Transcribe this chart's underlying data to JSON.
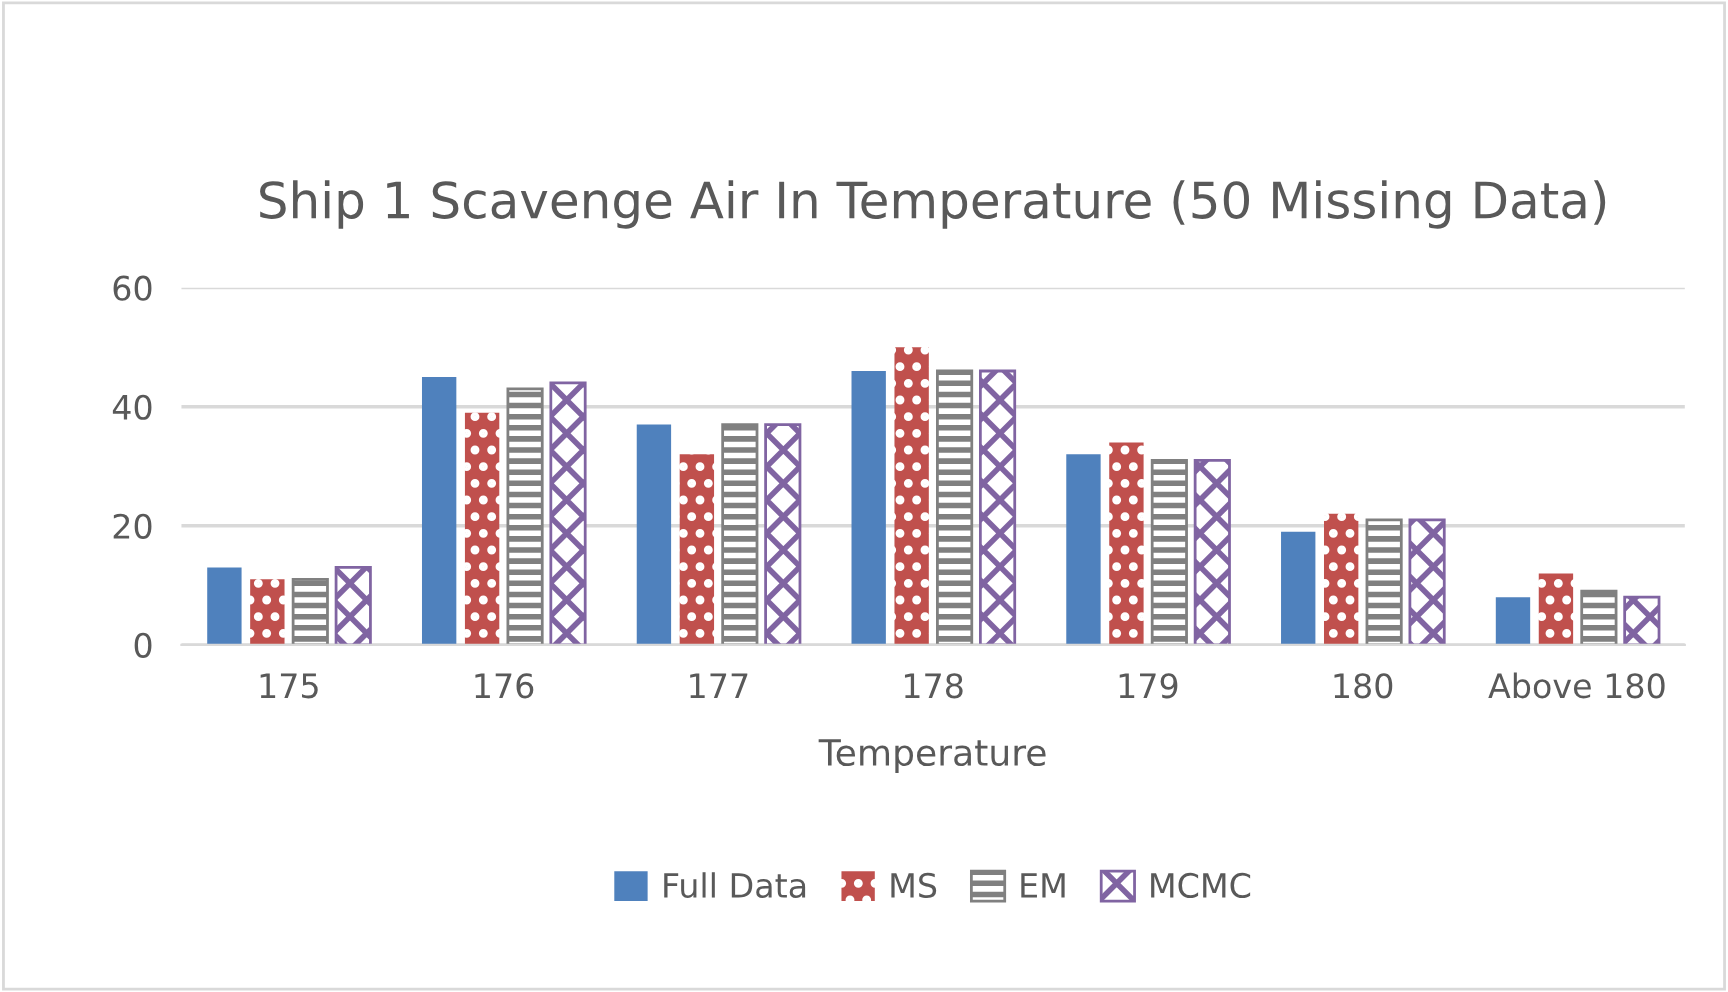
{
  "chart_data": {
    "type": "bar",
    "title": "Ship 1 Scavenge Air In Temperature (50 Missing Data)",
    "xlabel": "Temperature",
    "categories": [
      "175",
      "176",
      "177",
      "178",
      "179",
      "180",
      "Above 180"
    ],
    "series": [
      {
        "name": "Full Data",
        "color": "#4f81bd",
        "values": [
          13,
          45,
          37,
          46,
          32,
          19,
          8
        ]
      },
      {
        "name": "MS",
        "color": "#c0504d",
        "values": [
          11,
          39,
          32,
          50,
          34,
          22,
          12
        ]
      },
      {
        "name": "EM",
        "color": "#808080",
        "values": [
          11,
          43,
          37,
          46,
          31,
          21,
          9
        ]
      },
      {
        "name": "MCMC",
        "color": "#8064a2",
        "values": [
          13,
          44,
          37,
          46,
          31,
          21,
          8
        ]
      }
    ],
    "ylim": [
      0,
      60
    ],
    "yticks": [
      0,
      20,
      40,
      60
    ],
    "grid": "y",
    "legend": "bottom"
  }
}
